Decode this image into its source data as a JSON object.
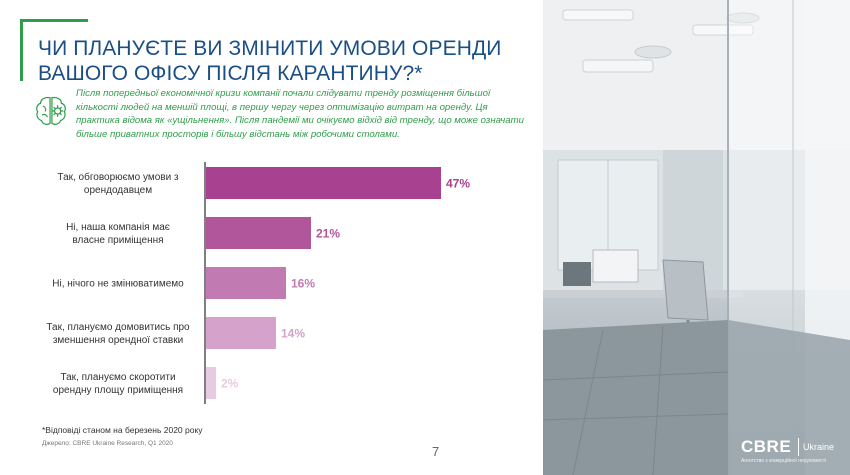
{
  "title": "ЧИ ПЛАНУЄТЕ ВИ ЗМІНИТИ УМОВИ ОРЕНДИ\nВАШОГО ОФІСУ ПІСЛЯ КАРАНТИНУ?*",
  "intro": "Після попередньої економічної кризи компанії почали слідувати тренду розміщення більшої кількості людей на меншій площі, в першу чергу через оптимізацію витрат на оренду. Ця практика відома як «ущільнення». Після пандемії ми очікуємо відхід від тренду, що може означати більше приватних просторів і більшу відстань між робочими столами.",
  "footnote": "*Відповіді станом на березень 2020 року",
  "source": "Джерело: CBRE Ukraine Research, Q1 2020",
  "page_number": "7",
  "logo": {
    "name": "CBRE",
    "region": "Ukraine",
    "tagline": "Агентство з комерційної нерухомості"
  },
  "icon": "brain-gear-icon",
  "colors": {
    "title": "#1a4f86",
    "accent_green": "#2f9d4b"
  },
  "chart_data": {
    "type": "bar",
    "orientation": "horizontal",
    "categories": [
      "Так, обговорюємо умови з\nорендодавцем",
      "Ні, наша компанія має\nвласне приміщення",
      "Ні, нічого не змінюватимемо",
      "Так, плануємо домовитись про\nзменшення орендної ставки",
      "Так, плануємо скоротити\nорендну площу приміщення"
    ],
    "values": [
      47,
      21,
      16,
      14,
      2
    ],
    "value_labels": [
      "47%",
      "21%",
      "16%",
      "14%",
      "2%"
    ],
    "unit": "%",
    "colors": [
      "#a8418f",
      "#b2569c",
      "#c27ab2",
      "#d4a2ca",
      "#e7cbe1"
    ],
    "xlim": [
      0,
      50
    ],
    "grid": false,
    "legend": "none"
  }
}
